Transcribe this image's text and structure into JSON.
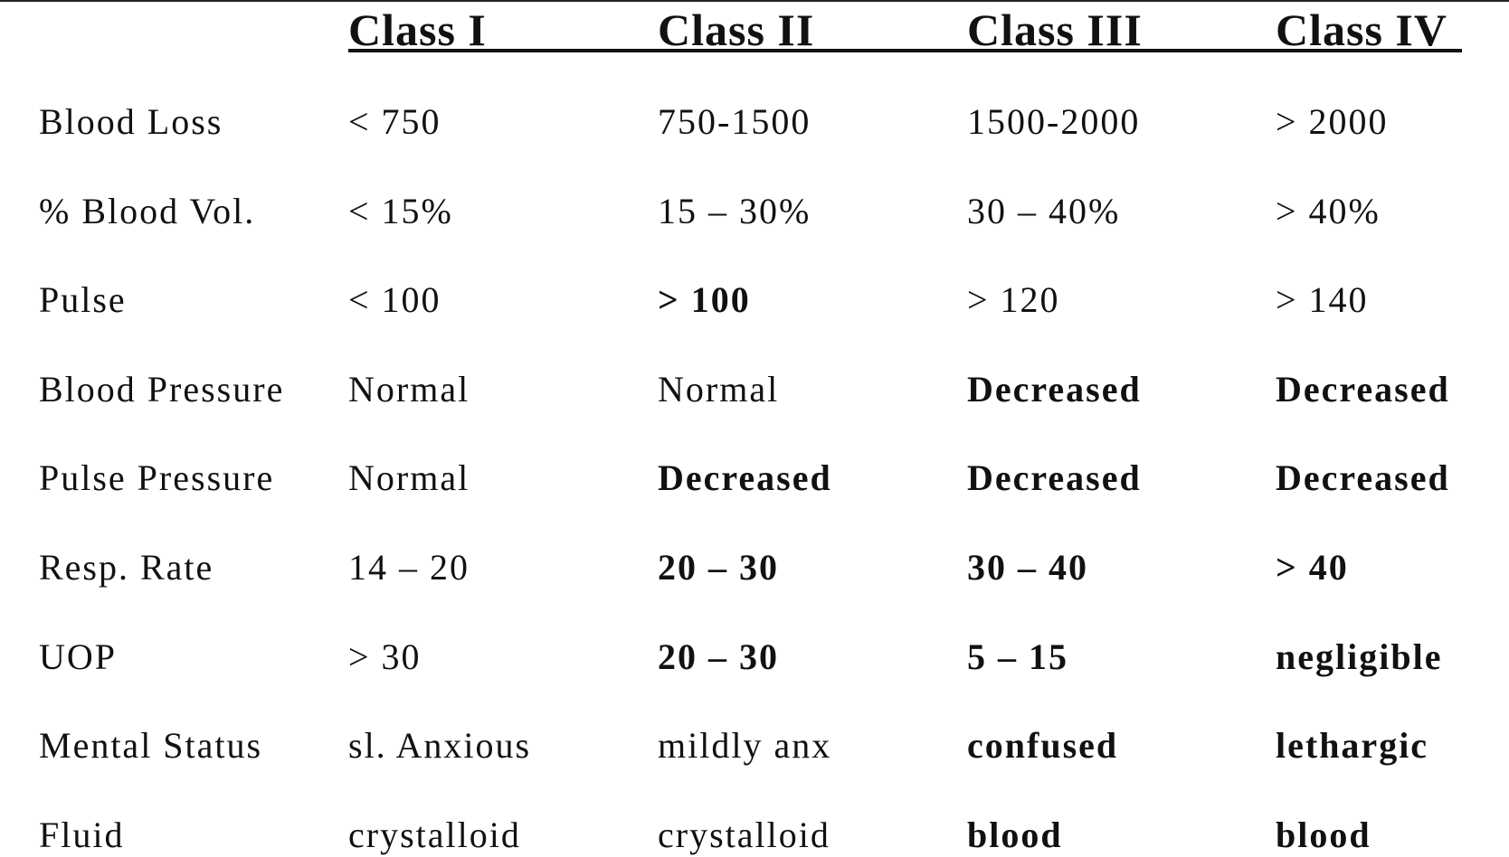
{
  "table": {
    "headers": [
      "Class I",
      "Class II",
      "Class III",
      "Class IV"
    ],
    "rows": [
      {
        "label": "Blood Loss",
        "cells": [
          "< 750",
          "750-1500",
          "1500-2000",
          "> 2000"
        ],
        "bold": [
          false,
          false,
          false,
          false
        ]
      },
      {
        "label": "% Blood Vol.",
        "cells": [
          "< 15%",
          "15 – 30%",
          "30 – 40%",
          "> 40%"
        ],
        "bold": [
          false,
          false,
          false,
          false
        ]
      },
      {
        "label": "Pulse",
        "cells": [
          "< 100",
          "> 100",
          "> 120",
          "> 140"
        ],
        "bold": [
          false,
          true,
          false,
          false
        ]
      },
      {
        "label": "Blood Pressure",
        "cells": [
          "Normal",
          "Normal",
          "Decreased",
          "Decreased"
        ],
        "bold": [
          false,
          false,
          true,
          true
        ]
      },
      {
        "label": "Pulse Pressure",
        "cells": [
          "Normal",
          "Decreased",
          "Decreased",
          "Decreased"
        ],
        "bold": [
          false,
          true,
          true,
          true
        ]
      },
      {
        "label": "Resp. Rate",
        "cells": [
          "14 – 20",
          "20 – 30",
          "30 – 40",
          "> 40"
        ],
        "bold": [
          false,
          true,
          true,
          true
        ]
      },
      {
        "label": "UOP",
        "cells": [
          "> 30",
          "20 – 30",
          "5 – 15",
          "negligible"
        ],
        "bold": [
          false,
          true,
          true,
          true
        ]
      },
      {
        "label": "Mental Status",
        "cells": [
          "sl. Anxious",
          "mildly anx",
          "confused",
          "lethargic"
        ],
        "bold": [
          false,
          false,
          true,
          true
        ]
      },
      {
        "label": "Fluid",
        "cells": [
          "crystalloid",
          "crystalloid",
          "blood",
          "blood"
        ],
        "bold": [
          false,
          false,
          true,
          true
        ]
      }
    ]
  }
}
